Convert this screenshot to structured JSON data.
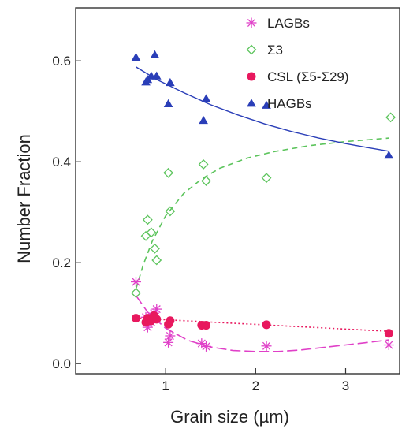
{
  "chart_data": {
    "type": "scatter",
    "xlabel": "Grain size (µm)",
    "ylabel": "Number Fraction",
    "xlim": [
      0.0,
      3.6
    ],
    "ylim": [
      -0.02,
      0.705
    ],
    "xticks": [
      {
        "value": 1,
        "label": "1"
      },
      {
        "value": 2,
        "label": "2"
      },
      {
        "value": 3,
        "label": "3"
      }
    ],
    "yticks": [
      {
        "value": 0.0,
        "label": "0.0"
      },
      {
        "value": 0.2,
        "label": "0.2"
      },
      {
        "value": 0.4,
        "label": "0.4"
      },
      {
        "value": 0.6,
        "label": "0.6"
      }
    ],
    "grid": false,
    "legend_position": "top-right",
    "series": [
      {
        "name": "LAGBs",
        "marker": "asterisk",
        "color": "#e040c8",
        "line_style": "long-dash",
        "points": [
          [
            0.67,
            0.162
          ],
          [
            0.78,
            0.092
          ],
          [
            0.8,
            0.072
          ],
          [
            0.84,
            0.082
          ],
          [
            0.87,
            0.1
          ],
          [
            0.9,
            0.108
          ],
          [
            1.03,
            0.042
          ],
          [
            1.05,
            0.055
          ],
          [
            1.4,
            0.04
          ],
          [
            1.45,
            0.034
          ],
          [
            2.12,
            0.035
          ],
          [
            3.48,
            0.037
          ]
        ],
        "trend": [
          [
            0.67,
            0.135
          ],
          [
            0.8,
            0.102
          ],
          [
            1.0,
            0.07
          ],
          [
            1.25,
            0.046
          ],
          [
            1.5,
            0.033
          ],
          [
            1.75,
            0.026
          ],
          [
            2.0,
            0.024
          ],
          [
            2.25,
            0.024
          ],
          [
            2.5,
            0.027
          ],
          [
            2.75,
            0.032
          ],
          [
            3.0,
            0.037
          ],
          [
            3.25,
            0.042
          ],
          [
            3.48,
            0.047
          ]
        ]
      },
      {
        "name": "Σ3",
        "marker": "diamond-open",
        "color": "#5cc45c",
        "line_style": "dash",
        "points": [
          [
            0.67,
            0.14
          ],
          [
            0.78,
            0.253
          ],
          [
            0.8,
            0.285
          ],
          [
            0.84,
            0.26
          ],
          [
            0.88,
            0.228
          ],
          [
            0.9,
            0.205
          ],
          [
            1.03,
            0.378
          ],
          [
            1.05,
            0.302
          ],
          [
            1.42,
            0.395
          ],
          [
            1.45,
            0.362
          ],
          [
            2.12,
            0.368
          ],
          [
            3.5,
            0.488
          ]
        ],
        "trend": [
          [
            0.67,
            0.148
          ],
          [
            0.75,
            0.195
          ],
          [
            0.85,
            0.242
          ],
          [
            1.0,
            0.293
          ],
          [
            1.2,
            0.337
          ],
          [
            1.4,
            0.366
          ],
          [
            1.6,
            0.387
          ],
          [
            1.9,
            0.407
          ],
          [
            2.2,
            0.42
          ],
          [
            2.6,
            0.432
          ],
          [
            3.0,
            0.44
          ],
          [
            3.48,
            0.447
          ]
        ]
      },
      {
        "name": "CSL (Σ5-Σ29)",
        "marker": "circle-filled",
        "color": "#e8185e",
        "line_style": "dot",
        "points": [
          [
            0.67,
            0.09
          ],
          [
            0.78,
            0.082
          ],
          [
            0.8,
            0.09
          ],
          [
            0.84,
            0.085
          ],
          [
            0.87,
            0.095
          ],
          [
            0.9,
            0.088
          ],
          [
            1.03,
            0.078
          ],
          [
            1.05,
            0.085
          ],
          [
            1.4,
            0.076
          ],
          [
            1.45,
            0.076
          ],
          [
            2.12,
            0.077
          ],
          [
            3.48,
            0.06
          ]
        ],
        "trend": [
          [
            0.67,
            0.09
          ],
          [
            3.48,
            0.064
          ]
        ]
      },
      {
        "name": "HAGBs",
        "marker": "triangle-filled",
        "color": "#2a3eb8",
        "line_style": "solid",
        "points": [
          [
            0.67,
            0.607
          ],
          [
            0.78,
            0.558
          ],
          [
            0.8,
            0.563
          ],
          [
            0.84,
            0.57
          ],
          [
            0.88,
            0.612
          ],
          [
            0.9,
            0.57
          ],
          [
            1.03,
            0.515
          ],
          [
            1.05,
            0.557
          ],
          [
            1.42,
            0.482
          ],
          [
            1.45,
            0.525
          ],
          [
            2.12,
            0.512
          ],
          [
            3.48,
            0.413
          ]
        ],
        "trend": [
          [
            0.67,
            0.588
          ],
          [
            0.9,
            0.563
          ],
          [
            1.2,
            0.537
          ],
          [
            1.5,
            0.513
          ],
          [
            1.8,
            0.493
          ],
          [
            2.1,
            0.475
          ],
          [
            2.4,
            0.46
          ],
          [
            2.7,
            0.447
          ],
          [
            3.0,
            0.436
          ],
          [
            3.25,
            0.428
          ],
          [
            3.48,
            0.421
          ]
        ]
      }
    ]
  }
}
